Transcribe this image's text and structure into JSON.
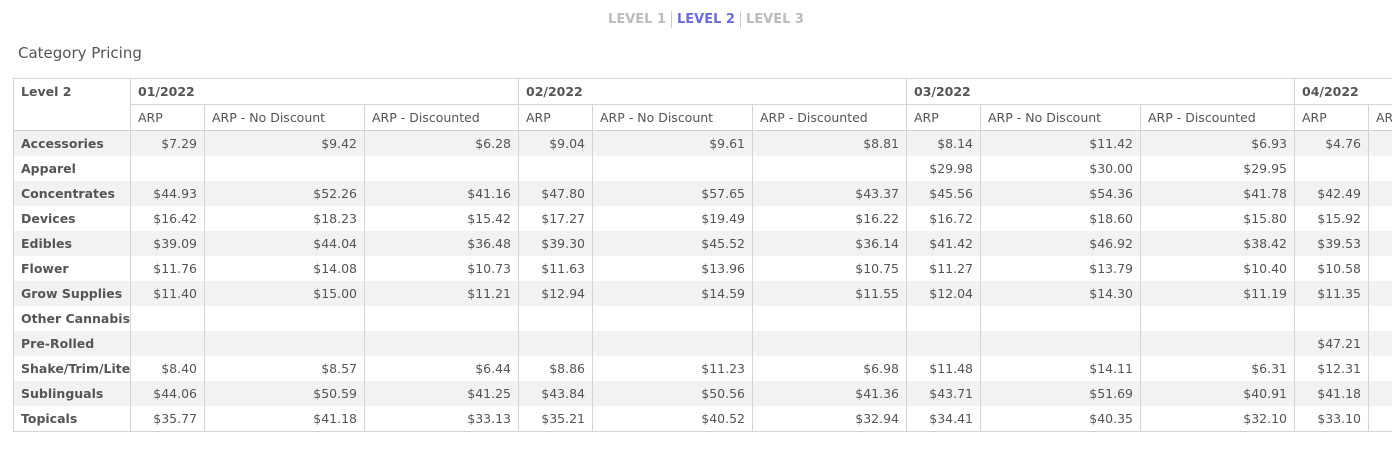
{
  "tabs": [
    "LEVEL 1",
    "LEVEL 2",
    "LEVEL 3"
  ],
  "title": "Category Pricing",
  "table": {
    "corner": "Level 2",
    "groups": [
      {
        "label": "01/2022",
        "columns": [
          "ARP",
          "ARP - No Discount",
          "ARP - Discounted"
        ]
      },
      {
        "label": "02/2022",
        "columns": [
          "ARP",
          "ARP - No Discount",
          "ARP - Discounted"
        ]
      },
      {
        "label": "03/2022",
        "columns": [
          "ARP",
          "ARP - No Discount",
          "ARP - Discounted"
        ]
      },
      {
        "label": "04/2022",
        "columns": [
          "ARP",
          "AR"
        ]
      }
    ],
    "rows": [
      {
        "label": "Accessories",
        "cells": [
          "$7.29",
          "$9.42",
          "$6.28",
          "$9.04",
          "$9.61",
          "$8.81",
          "$8.14",
          "$11.42",
          "$6.93",
          "$4.76",
          null
        ]
      },
      {
        "label": "Apparel",
        "cells": [
          null,
          null,
          null,
          null,
          null,
          null,
          "$29.98",
          "$30.00",
          "$29.95",
          null,
          null
        ]
      },
      {
        "label": "Concentrates",
        "cells": [
          "$44.93",
          "$52.26",
          "$41.16",
          "$47.80",
          "$57.65",
          "$43.37",
          "$45.56",
          "$54.36",
          "$41.78",
          "$42.49",
          null
        ]
      },
      {
        "label": "Devices",
        "cells": [
          "$16.42",
          "$18.23",
          "$15.42",
          "$17.27",
          "$19.49",
          "$16.22",
          "$16.72",
          "$18.60",
          "$15.80",
          "$15.92",
          null
        ]
      },
      {
        "label": "Edibles",
        "cells": [
          "$39.09",
          "$44.04",
          "$36.48",
          "$39.30",
          "$45.52",
          "$36.14",
          "$41.42",
          "$46.92",
          "$38.42",
          "$39.53",
          null
        ]
      },
      {
        "label": "Flower",
        "cells": [
          "$11.76",
          "$14.08",
          "$10.73",
          "$11.63",
          "$13.96",
          "$10.75",
          "$11.27",
          "$13.79",
          "$10.40",
          "$10.58",
          null
        ]
      },
      {
        "label": "Grow Supplies",
        "cells": [
          "$11.40",
          "$15.00",
          "$11.21",
          "$12.94",
          "$14.59",
          "$11.55",
          "$12.04",
          "$14.30",
          "$11.19",
          "$11.35",
          null
        ]
      },
      {
        "label": "Other Cannabis",
        "cells": [
          null,
          null,
          null,
          null,
          null,
          null,
          null,
          null,
          null,
          null,
          null
        ]
      },
      {
        "label": "Pre-Rolled",
        "cells": [
          null,
          null,
          null,
          null,
          null,
          null,
          null,
          null,
          null,
          "$47.21",
          null
        ]
      },
      {
        "label": "Shake/Trim/Lite",
        "cells": [
          "$8.40",
          "$8.57",
          "$6.44",
          "$8.86",
          "$11.23",
          "$6.98",
          "$11.48",
          "$14.11",
          "$6.31",
          "$12.31",
          null
        ]
      },
      {
        "label": "Sublinguals",
        "cells": [
          "$44.06",
          "$50.59",
          "$41.25",
          "$43.84",
          "$50.56",
          "$41.36",
          "$43.71",
          "$51.69",
          "$40.91",
          "$41.18",
          null
        ]
      },
      {
        "label": "Topicals",
        "cells": [
          "$35.77",
          "$41.18",
          "$33.13",
          "$35.21",
          "$40.52",
          "$32.94",
          "$34.41",
          "$40.35",
          "$32.10",
          "$33.10",
          null
        ]
      }
    ]
  }
}
